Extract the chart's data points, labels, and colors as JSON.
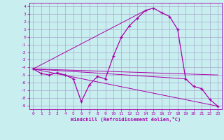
{
  "xlabel": "Windchill (Refroidissement éolien,°C)",
  "background_color": "#c8eef0",
  "grid_color": "#aaaacc",
  "line_color": "#aa00aa",
  "xlim": [
    -0.5,
    23.5
  ],
  "ylim": [
    -9.5,
    4.5
  ],
  "xticks": [
    0,
    1,
    2,
    3,
    4,
    5,
    6,
    7,
    8,
    9,
    10,
    11,
    12,
    13,
    14,
    15,
    16,
    17,
    18,
    19,
    20,
    21,
    22,
    23
  ],
  "yticks": [
    4,
    3,
    2,
    1,
    0,
    -1,
    -2,
    -3,
    -4,
    -5,
    -6,
    -7,
    -8,
    -9
  ],
  "curve1_x": [
    0,
    1,
    2,
    3,
    4,
    5,
    6,
    7,
    8,
    9,
    10,
    11,
    12,
    13,
    14,
    15,
    16,
    17,
    18,
    19,
    20,
    21,
    22,
    23
  ],
  "curve1_y": [
    -4.2,
    -4.8,
    -5.0,
    -4.7,
    -5.0,
    -5.5,
    -8.5,
    -6.3,
    -5.2,
    -5.5,
    -2.5,
    0.0,
    1.5,
    2.5,
    3.5,
    3.8,
    3.2,
    2.7,
    1.0,
    -5.5,
    -6.5,
    -6.8,
    -8.2,
    -9.1
  ],
  "curve2_x": [
    0,
    23
  ],
  "curve2_y": [
    -4.2,
    -9.1
  ],
  "curve3_x": [
    0,
    23
  ],
  "curve3_y": [
    -4.2,
    -5.0
  ],
  "curve4_x": [
    0,
    19
  ],
  "curve4_y": [
    -4.2,
    -5.5
  ],
  "curve5_x": [
    0,
    14
  ],
  "curve5_y": [
    -4.2,
    3.5
  ]
}
